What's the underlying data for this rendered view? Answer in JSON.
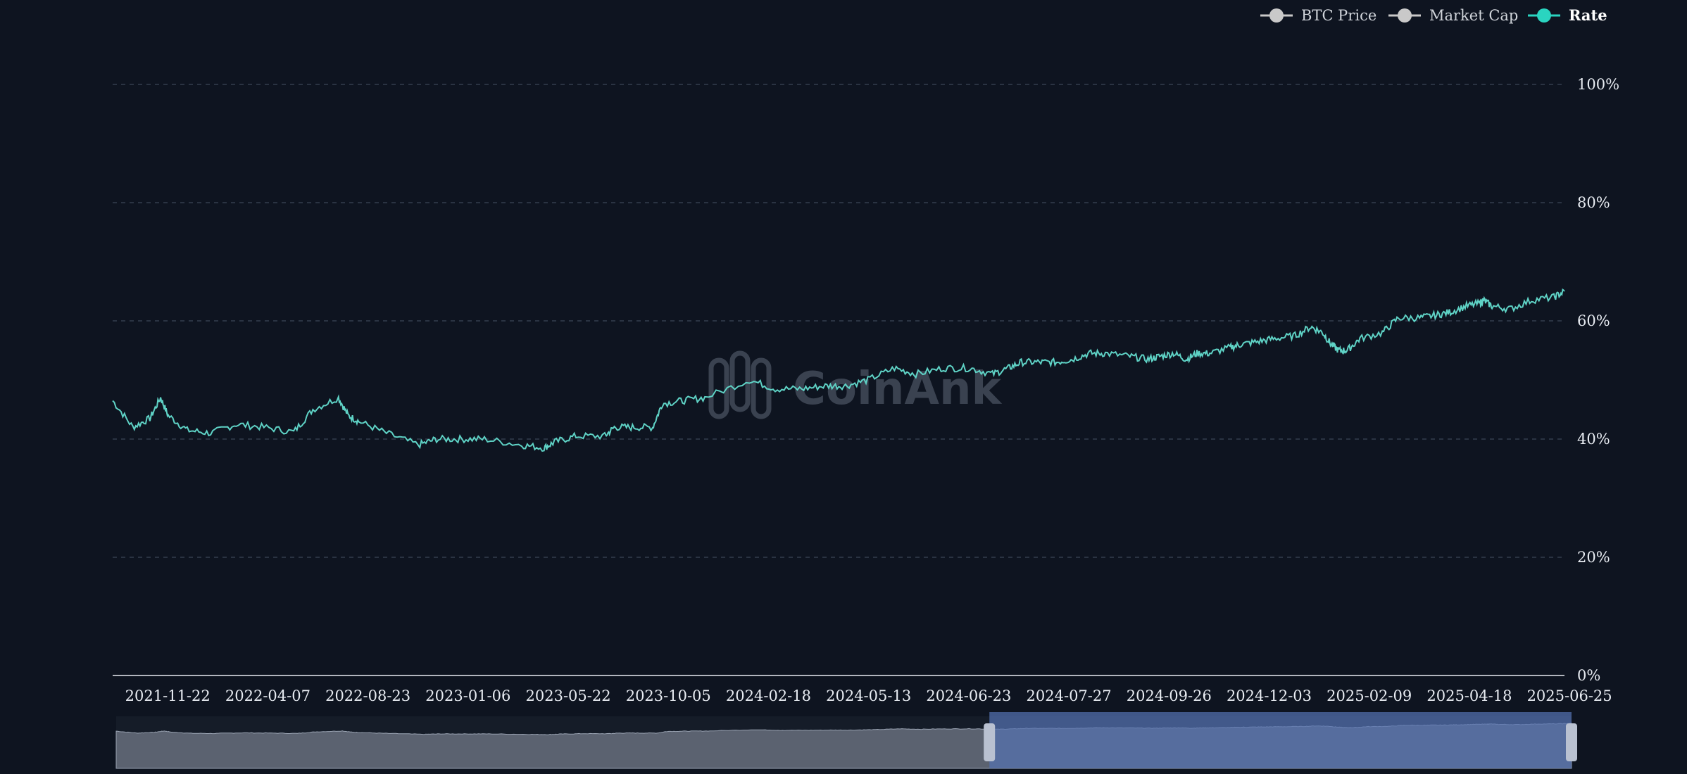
{
  "watermark": "CoinAnk",
  "legend": [
    {
      "label": "BTC Price",
      "color": "#c9c9c9",
      "active": false
    },
    {
      "label": "Market Cap",
      "color": "#c9c9c9",
      "active": false
    },
    {
      "label": "Rate",
      "color": "#2ad4c0",
      "active": true
    }
  ],
  "colors": {
    "background": "#0e1420",
    "rate_line": "#5fd3c6",
    "grid": "#3c4657",
    "axis_text": "#e8ecf2",
    "slider_fill": "#5471b0",
    "slider_handle": "#b9c1d1",
    "overview_fill": "#5b6270"
  },
  "chart_data": {
    "type": "line",
    "series": [
      {
        "name": "Rate",
        "x": [
          "2021-10-01",
          "2021-10-20",
          "2021-11-05",
          "2021-11-15",
          "2021-11-22",
          "2021-12-10",
          "2022-01-01",
          "2022-01-25",
          "2022-02-20",
          "2022-03-20",
          "2022-04-07",
          "2022-05-01",
          "2022-05-10",
          "2022-05-20",
          "2022-06-15",
          "2022-07-15",
          "2022-08-01",
          "2022-08-23",
          "2022-09-15",
          "2022-10-20",
          "2022-11-10",
          "2022-11-20",
          "2022-12-10",
          "2023-01-06",
          "2023-01-15",
          "2023-02-01",
          "2023-02-20",
          "2023-03-01",
          "2023-03-20",
          "2023-04-10",
          "2023-05-22",
          "2023-06-15",
          "2023-07-10",
          "2023-08-01",
          "2023-08-20",
          "2023-09-10",
          "2023-10-05",
          "2023-10-25",
          "2023-11-20",
          "2023-12-15",
          "2024-01-05",
          "2024-01-20",
          "2024-02-01",
          "2024-02-18",
          "2024-03-05",
          "2024-03-20",
          "2024-04-05",
          "2024-04-20",
          "2024-05-13",
          "2024-05-30",
          "2024-06-10",
          "2024-06-23",
          "2024-07-05",
          "2024-07-15",
          "2024-07-27",
          "2024-08-15",
          "2024-08-25",
          "2024-09-10",
          "2024-09-26",
          "2024-10-15",
          "2024-10-30",
          "2024-11-10",
          "2024-11-18",
          "2024-11-25",
          "2024-12-03",
          "2024-12-15",
          "2025-01-05",
          "2025-01-20",
          "2025-02-09",
          "2025-02-25",
          "2025-03-10",
          "2025-03-25",
          "2025-04-07",
          "2025-04-10",
          "2025-04-18",
          "2025-05-05",
          "2025-05-25",
          "2025-06-15",
          "2025-06-25"
        ],
        "values": [
          46.5,
          42,
          43.5,
          47,
          44,
          41.5,
          41,
          42.5,
          42,
          41.2,
          45,
          47,
          44,
          43,
          41,
          39,
          40,
          40,
          40,
          39,
          38.5,
          39.5,
          40.5,
          40.5,
          42,
          42,
          42,
          46,
          46.5,
          47,
          50,
          48.5,
          48.5,
          49,
          49,
          50,
          52,
          51,
          52,
          52,
          51,
          52,
          53,
          53,
          53,
          53.5,
          54.5,
          54.5,
          54,
          53.5,
          54,
          54.5,
          53.5,
          54.5,
          54.5,
          55.5,
          56,
          56.5,
          57,
          57.5,
          59,
          58,
          56,
          55,
          55,
          57,
          58,
          60.5,
          60.5,
          61,
          61.5,
          62.5,
          63,
          63.5,
          62.5,
          62,
          63.5,
          64,
          65
        ]
      }
    ],
    "y_tick_labels": [
      "0%",
      "20%",
      "40%",
      "60%",
      "80%",
      "100%"
    ],
    "ylim": [
      0,
      100
    ],
    "x_tick_labels": [
      "2021-11-22",
      "2022-04-07",
      "2022-08-23",
      "2023-01-06",
      "2023-05-22",
      "2023-10-05",
      "2024-02-18",
      "2024-05-13",
      "2024-06-23",
      "2024-07-27",
      "2024-09-26",
      "2024-12-03",
      "2025-02-09",
      "2025-04-18",
      "2025-06-25"
    ],
    "grid": true,
    "legend_position": "top-right",
    "zoom_range_percent": [
      60,
      100
    ]
  }
}
